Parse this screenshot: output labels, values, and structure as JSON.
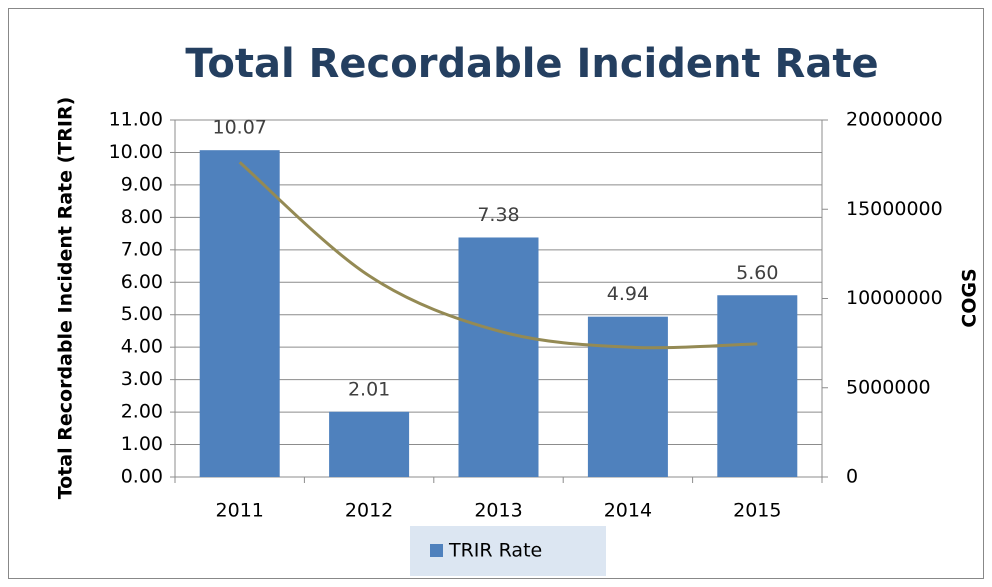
{
  "chart_data": {
    "type": "bar",
    "title": "Total Recordable Incident Rate",
    "y_label": "Total Recordable Incident Rate (TRIR)",
    "y2_label": "COGS",
    "categories": [
      "2011",
      "2012",
      "2013",
      "2014",
      "2015"
    ],
    "series": [
      {
        "name": "TRIR Rate",
        "color": "#4f81bd",
        "values": [
          10.07,
          2.01,
          7.38,
          4.94,
          5.6
        ],
        "value_labels": [
          "10.07",
          "2.01",
          "7.38",
          "4.94",
          "5.60"
        ]
      }
    ],
    "trendline": {
      "color": "#948a54",
      "values": [
        9.7,
        6.2,
        4.5,
        4.0,
        4.1
      ]
    },
    "ylim": [
      0,
      11
    ],
    "yticks": [
      {
        "value": 0,
        "label": "0.00"
      },
      {
        "value": 1,
        "label": "1.00"
      },
      {
        "value": 2,
        "label": "2.00"
      },
      {
        "value": 3,
        "label": "3.00"
      },
      {
        "value": 4,
        "label": "4.00"
      },
      {
        "value": 5,
        "label": "5.00"
      },
      {
        "value": 6,
        "label": "6.00"
      },
      {
        "value": 7,
        "label": "7.00"
      },
      {
        "value": 8,
        "label": "8.00"
      },
      {
        "value": 9,
        "label": "9.00"
      },
      {
        "value": 10,
        "label": "10.00"
      },
      {
        "value": 11,
        "label": "11.00"
      }
    ],
    "y2lim": [
      0,
      20000000
    ],
    "y2ticks": [
      0,
      5000000,
      10000000,
      15000000,
      20000000
    ],
    "grid": true,
    "legend": "bottom"
  }
}
